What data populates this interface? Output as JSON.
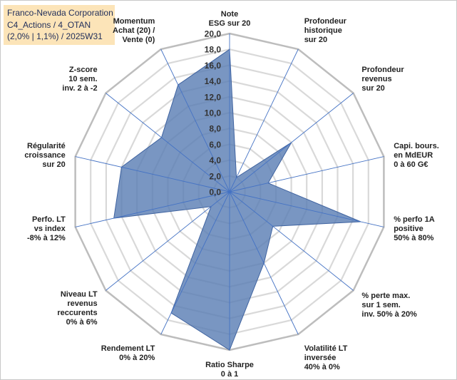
{
  "title": {
    "lines": [
      "Franco-Nevada Corporation",
      "C4_Actions / 4_OTAN",
      "(2,0% | 1,1%) / 2025W31"
    ]
  },
  "chart_data": {
    "type": "radar",
    "rmin": 0,
    "rmax": 20,
    "ticks": [
      "0,0",
      "2,0",
      "4,0",
      "6,0",
      "8,0",
      "10,0",
      "12,0",
      "14,0",
      "16,0",
      "18,0",
      "20,0"
    ],
    "grid": true,
    "fill_color": "#5b7fb5",
    "stroke_color": "#3f63a0",
    "axes": [
      {
        "label": [
          "Note",
          "ESG sur 20"
        ],
        "value": 18
      },
      {
        "label": [
          "Profondeur",
          "historique",
          "sur 20"
        ],
        "value": 2
      },
      {
        "label": [
          "Profondeur",
          "revenus",
          "sur 20"
        ],
        "value": 10
      },
      {
        "label": [
          "Capi. bours.",
          "en MdEUR",
          "0 à 60 G€"
        ],
        "value": 5
      },
      {
        "label": [
          "% perfo 1A",
          "positive",
          "50% à 80%"
        ],
        "value": 17
      },
      {
        "label": [
          "% perte max.",
          "sur 1 sem.",
          "inv. 50% à 20%"
        ],
        "value": 7
      },
      {
        "label": [
          "Volatilité LT",
          "inversée",
          "40% à 0%"
        ],
        "value": 10
      },
      {
        "label": [
          "Ratio Sharpe",
          "0 à 1"
        ],
        "value": 20
      },
      {
        "label": [
          "Rendement LT",
          "0% à 20%"
        ],
        "value": 17
      },
      {
        "label": [
          "Niveau LT",
          "revenus",
          "reccurents",
          "0% à 6%"
        ],
        "value": 3
      },
      {
        "label": [
          "Perfo. LT",
          "vs index",
          "-8% à 12%"
        ],
        "value": 15
      },
      {
        "label": [
          "Régularité",
          "croissance",
          "sur 20"
        ],
        "value": 14
      },
      {
        "label": [
          "Z-score",
          "10 sem.",
          "inv. 2 à -2"
        ],
        "value": 11
      },
      {
        "label": [
          "Momentum",
          "Achat (20) /",
          "Vente (0)"
        ],
        "value": 15
      }
    ]
  }
}
